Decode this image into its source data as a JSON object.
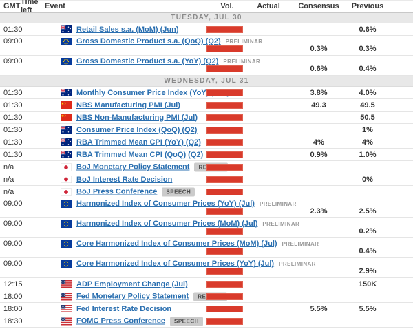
{
  "header": {
    "gmt": "GMT",
    "time_left": "Time left",
    "event": "Event",
    "vol": "Vol.",
    "actual": "Actual",
    "consensus": "Consensus",
    "previous": "Previous"
  },
  "colors": {
    "text": "#333333",
    "link_blue": "#2a6fb0",
    "volatility_bar": "#d93a2b",
    "volatility_bar_border": "#e0604f",
    "day_band_bg": "#e8e8e8",
    "day_band_text": "#8a8a8a",
    "row_border": "#e5e5e5",
    "badge_bg": "#cbcbcb",
    "badge_text": "#4a4a4a",
    "note_text": "#999999"
  },
  "days": [
    {
      "label": "TUESDAY, JUL 30",
      "events": [
        {
          "gmt": "01:30",
          "time_left": "",
          "country": "australia",
          "title": "Retail Sales s.a. (MoM) (Jun)",
          "note": "",
          "badge": "",
          "volatility": "high",
          "actual": "",
          "consensus": "",
          "previous": "0.6%"
        },
        {
          "gmt": "09:00",
          "time_left": "",
          "country": "eurozone",
          "title": "Gross Domestic Product s.a. (QoQ) (Q2)",
          "note": "PRELIMINAR",
          "badge": "",
          "volatility": "high",
          "actual": "",
          "consensus": "0.3%",
          "previous": "0.3%"
        },
        {
          "gmt": "09:00",
          "time_left": "",
          "country": "eurozone",
          "title": "Gross Domestic Product s.a. (YoY) (Q2)",
          "note": "PRELIMINAR",
          "badge": "",
          "volatility": "high",
          "actual": "",
          "consensus": "0.6%",
          "previous": "0.4%"
        }
      ]
    },
    {
      "label": "WEDNESDAY, JUL 31",
      "events": [
        {
          "gmt": "01:30",
          "time_left": "",
          "country": "australia",
          "title": "Monthly Consumer Price Index (YoY) (Jun)",
          "note": "",
          "badge": "",
          "volatility": "high",
          "actual": "",
          "consensus": "3.8%",
          "previous": "4.0%"
        },
        {
          "gmt": "01:30",
          "time_left": "",
          "country": "china",
          "title": "NBS Manufacturing PMI (Jul)",
          "note": "",
          "badge": "",
          "volatility": "high",
          "actual": "",
          "consensus": "49.3",
          "previous": "49.5"
        },
        {
          "gmt": "01:30",
          "time_left": "",
          "country": "china",
          "title": "NBS Non-Manufacturing PMI (Jul)",
          "note": "",
          "badge": "",
          "volatility": "high",
          "actual": "",
          "consensus": "",
          "previous": "50.5"
        },
        {
          "gmt": "01:30",
          "time_left": "",
          "country": "australia",
          "title": "Consumer Price Index (QoQ) (Q2)",
          "note": "",
          "badge": "",
          "volatility": "high",
          "actual": "",
          "consensus": "",
          "previous": "1%"
        },
        {
          "gmt": "01:30",
          "time_left": "",
          "country": "australia",
          "title": "RBA Trimmed Mean CPI (YoY) (Q2)",
          "note": "",
          "badge": "",
          "volatility": "high",
          "actual": "",
          "consensus": "4%",
          "previous": "4%"
        },
        {
          "gmt": "01:30",
          "time_left": "",
          "country": "australia",
          "title": "RBA Trimmed Mean CPI (QoQ) (Q2)",
          "note": "",
          "badge": "",
          "volatility": "high",
          "actual": "",
          "consensus": "0.9%",
          "previous": "1.0%"
        },
        {
          "gmt": "n/a",
          "time_left": "",
          "country": "japan",
          "title": "BoJ Monetary Policy Statement",
          "note": "",
          "badge": "REPORT",
          "volatility": "high",
          "actual": "",
          "consensus": "",
          "previous": ""
        },
        {
          "gmt": "n/a",
          "time_left": "",
          "country": "japan",
          "title": "BoJ Interest Rate Decision",
          "note": "",
          "badge": "",
          "volatility": "high",
          "actual": "",
          "consensus": "",
          "previous": "0%"
        },
        {
          "gmt": "n/a",
          "time_left": "",
          "country": "japan",
          "title": "BoJ Press Conference",
          "note": "",
          "badge": "SPEECH",
          "volatility": "high",
          "actual": "",
          "consensus": "",
          "previous": ""
        },
        {
          "gmt": "09:00",
          "time_left": "",
          "country": "eurozone",
          "title": "Harmonized Index of Consumer Prices (YoY) (Jul)",
          "note": "PRELIMINAR",
          "badge": "",
          "volatility": "high",
          "actual": "",
          "consensus": "2.3%",
          "previous": "2.5%"
        },
        {
          "gmt": "09:00",
          "time_left": "",
          "country": "eurozone",
          "title": "Harmonized Index of Consumer Prices (MoM) (Jul)",
          "note": "PRELIMINAR",
          "badge": "",
          "volatility": "high",
          "actual": "",
          "consensus": "",
          "previous": "0.2%"
        },
        {
          "gmt": "09:00",
          "time_left": "",
          "country": "eurozone",
          "title": "Core Harmonized Index of Consumer Prices (MoM) (Jul)",
          "note": "PRELIMINAR",
          "badge": "",
          "volatility": "high",
          "actual": "",
          "consensus": "",
          "previous": "0.4%"
        },
        {
          "gmt": "09:00",
          "time_left": "",
          "country": "eurozone",
          "title": "Core Harmonized Index of Consumer Prices (YoY) (Jul)",
          "note": "PRELIMINAR",
          "badge": "",
          "volatility": "high",
          "actual": "",
          "consensus": "",
          "previous": "2.9%"
        },
        {
          "gmt": "12:15",
          "time_left": "",
          "country": "united-states",
          "title": "ADP Employment Change (Jul)",
          "note": "",
          "badge": "",
          "volatility": "high",
          "actual": "",
          "consensus": "",
          "previous": "150K"
        },
        {
          "gmt": "18:00",
          "time_left": "",
          "country": "united-states",
          "title": "Fed Monetary Policy Statement",
          "note": "",
          "badge": "REPORT",
          "volatility": "high",
          "actual": "",
          "consensus": "",
          "previous": ""
        },
        {
          "gmt": "18:00",
          "time_left": "",
          "country": "united-states",
          "title": "Fed Interest Rate Decision",
          "note": "",
          "badge": "",
          "volatility": "high",
          "actual": "",
          "consensus": "5.5%",
          "previous": "5.5%"
        },
        {
          "gmt": "18:30",
          "time_left": "",
          "country": "united-states",
          "title": "FOMC Press Conference",
          "note": "",
          "badge": "SPEECH",
          "volatility": "high",
          "actual": "",
          "consensus": "",
          "previous": ""
        }
      ]
    }
  ]
}
